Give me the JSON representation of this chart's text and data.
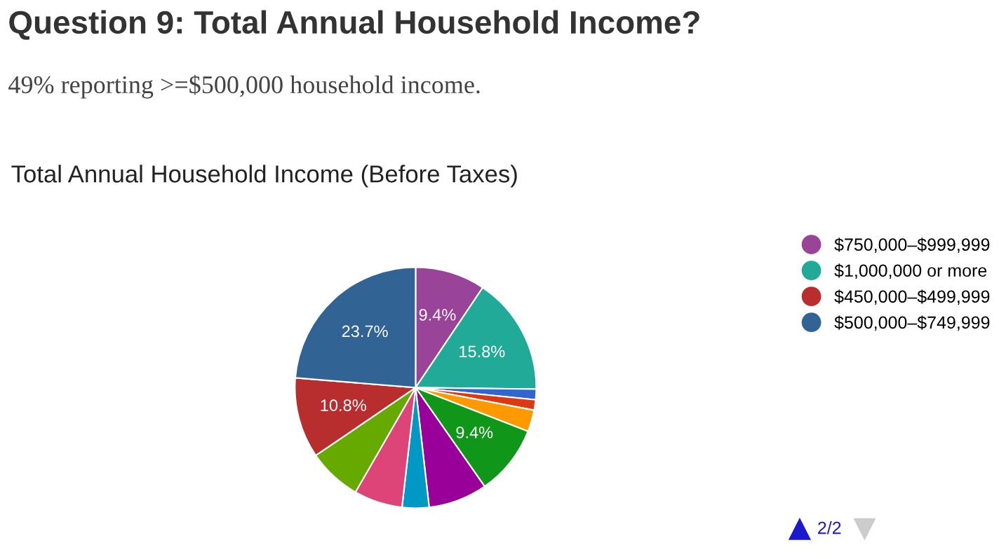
{
  "chart_data": {
    "type": "pie",
    "title": "Question 9: Total Annual Household Income?",
    "subtitle": "49% reporting >=$500,000 household income.",
    "annotations": [
      "Total Annual Household Income (Before Taxes)",
      "2/2"
    ],
    "categories": [
      "$750,000–$999,999",
      "$1,000,000 or more",
      null,
      null,
      null,
      null,
      null,
      null,
      null,
      null,
      "$450,000–$499,999",
      "$500,000–$749,999"
    ],
    "values": [
      9.4,
      15.8,
      1.4,
      1.4,
      2.9,
      9.4,
      7.9,
      3.6,
      6.5,
      7.2,
      10.8,
      23.7
    ],
    "colors": [
      "#994499",
      "#22aa99",
      "#3366cc",
      "#dc3912",
      "#ff9900",
      "#109618",
      "#990099",
      "#0099c6",
      "#dd4477",
      "#66aa00",
      "#b82e2e",
      "#316395"
    ],
    "value_labels": [
      "9.4%",
      "15.8%",
      null,
      null,
      null,
      "9.4%",
      null,
      null,
      null,
      null,
      "10.8%",
      "23.7%"
    ],
    "legend": "top right"
  }
}
